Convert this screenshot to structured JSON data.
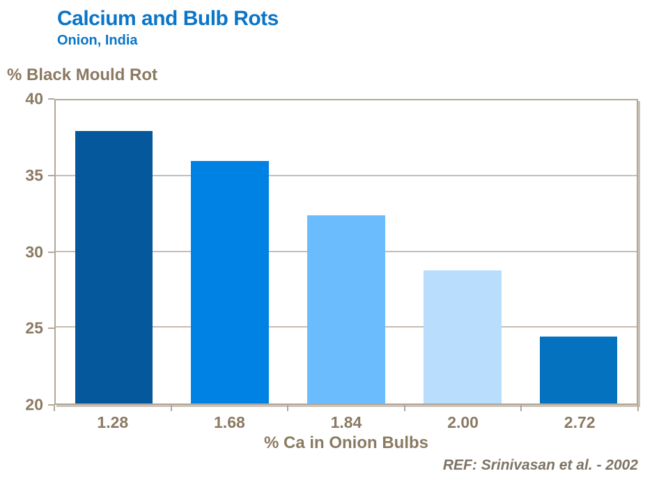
{
  "header": {
    "title": "Calcium and Bulb Rots",
    "subtitle": "Onion, India"
  },
  "footer": {
    "reference": "REF: Srinivasan et al. - 2002"
  },
  "colors": {
    "title_blue": "#0B75C8",
    "axis_text_brown": "#8B7A62",
    "footer_brown": "#7D7365",
    "plot_border_tan": "#B0A79A",
    "gridline_tan": "#C6BDB1",
    "background": "#FFFFFF"
  },
  "chart_data": {
    "type": "bar",
    "title": "Calcium and Bulb Rots",
    "subtitle": "Onion, India",
    "categories": [
      "1.28",
      "1.68",
      "1.84",
      "2.00",
      "2.72"
    ],
    "values": [
      38,
      36,
      32.4,
      28.8,
      24.4
    ],
    "bar_colors": [
      "#04589B",
      "#0082E5",
      "#6ABCFC",
      "#B9DDFC",
      "#0472BF"
    ],
    "xlabel": "% Ca in Onion Bulbs",
    "ylabel": "% Black Mould Rot",
    "ylim": [
      20,
      40
    ],
    "yticks": [
      20,
      25,
      30,
      35,
      40
    ],
    "grid": "horizontal-only",
    "legend": "none",
    "bar_width_fraction": 0.67
  }
}
